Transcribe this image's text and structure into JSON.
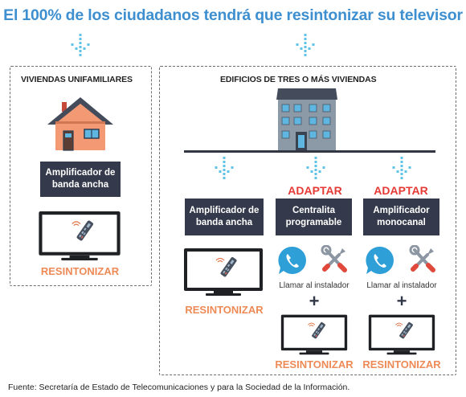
{
  "title": "El 100% de los ciudadanos tendrá que resintonizar su televisor",
  "left": {
    "heading": "VIVIENDAS UNIFAMILIARES",
    "box_line1": "Amplificador de",
    "box_line2": "banda ancha",
    "action": "RESINTONIZAR"
  },
  "right": {
    "heading": "EDIFICIOS DE  TRES O MÁS VIVIENDAS",
    "col1": {
      "box_line1": "Amplificador de",
      "box_line2": "banda ancha",
      "action": "RESINTONIZAR"
    },
    "col2": {
      "adapt": "ADAPTAR",
      "box_line1": "Centralita",
      "box_line2": "programable",
      "call": "Llamar al instalador",
      "plus": "+",
      "action": "RESINTONIZAR"
    },
    "col3": {
      "adapt": "ADAPTAR",
      "box_line1": "Amplificador",
      "box_line2": "monocanal",
      "call": "Llamar al instalador",
      "plus": "+",
      "action": "RESINTONIZAR"
    }
  },
  "footer": "Fuente: Secretaría de Estado de Telecomunicaciones y para la Sociedad de la Información.",
  "colors": {
    "title": "#3e8fcf",
    "dark_box": "#343a4b",
    "resintonizar": "#ee8a56",
    "adaptar": "#e53a36",
    "arrow": "#5ec3e6",
    "phone": "#2f9fd8"
  }
}
